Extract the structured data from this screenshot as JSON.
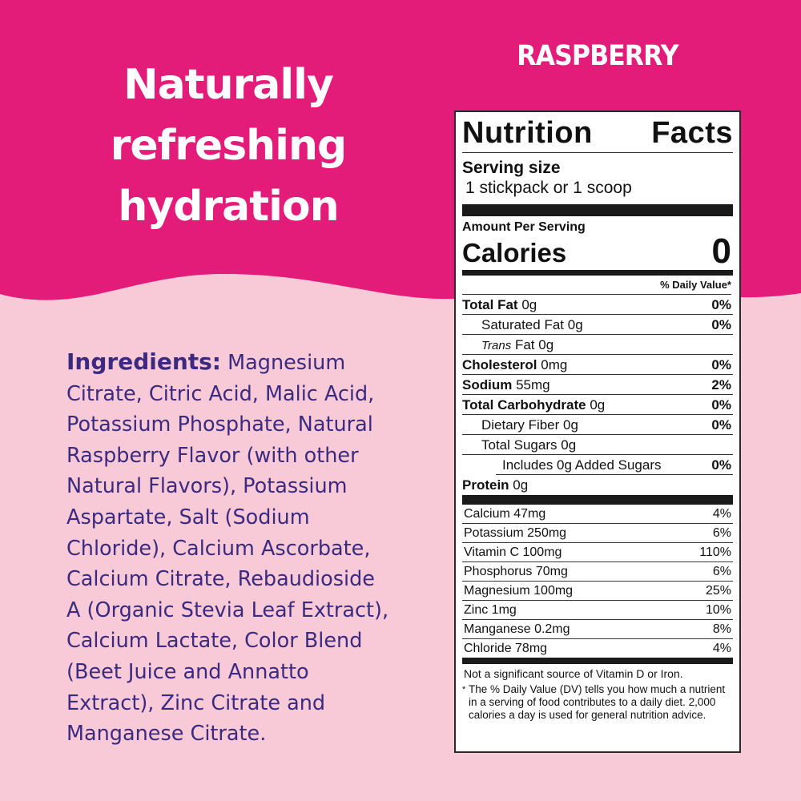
{
  "colors": {
    "top": "#e31b79",
    "bottom": "#f8cad7",
    "ingredients_text": "#3b2a7f"
  },
  "headline": [
    "Naturally",
    "refreshing",
    "hydration"
  ],
  "flavor": "RASPBERRY",
  "ingredients": {
    "label": "Ingredients:",
    "lines": [
      "Magnesium",
      "Citrate, Citric Acid, Malic Acid,",
      "Potassium Phosphate, Natural",
      "Raspberry Flavor (with other",
      "Natural Flavors), Potassium",
      "Aspartate, Salt (Sodium",
      "Chloride), Calcium Ascorbate,",
      "Calcium Citrate, Rebaudioside",
      "A (Organic Stevia Leaf Extract),",
      "Calcium Lactate, Color Blend",
      "(Beet Juice and Annatto",
      "Extract), Zinc Citrate and",
      "Manganese Citrate."
    ]
  },
  "nutrition": {
    "title_1": "Nutrition",
    "title_2": "Facts",
    "serving_label": "Serving size",
    "serving_value": "1 stickpack or 1 scoop",
    "amount_per_serving": "Amount Per Serving",
    "calories_label": "Calories",
    "calories": "0",
    "dv_header": "% Daily Value*",
    "rows": [
      {
        "name": "Total Fat",
        "amt": "0g",
        "dv": "0%",
        "bold": true,
        "indent": 0
      },
      {
        "name": "Saturated Fat",
        "amt": "0g",
        "dv": "0%",
        "bold": false,
        "indent": 1
      },
      {
        "name": "Trans",
        "name2": "Fat",
        "amt": "0g",
        "dv": "",
        "bold": false,
        "indent": 1,
        "italic": true
      },
      {
        "name": "Cholesterol",
        "amt": "0mg",
        "dv": "0%",
        "bold": true,
        "indent": 0
      },
      {
        "name": "Sodium",
        "amt": "55mg",
        "dv": "2%",
        "bold": true,
        "indent": 0
      },
      {
        "name": "Total Carbohydrate",
        "amt": "0g",
        "dv": "0%",
        "bold": true,
        "indent": 0
      },
      {
        "name": "Dietary Fiber",
        "amt": "0g",
        "dv": "0%",
        "bold": false,
        "indent": 1
      },
      {
        "name": "Total Sugars",
        "amt": "0g",
        "dv": "",
        "bold": false,
        "indent": 1
      },
      {
        "name": "Includes 0g Added Sugars",
        "amt": "",
        "dv": "0%",
        "bold": false,
        "indent": 2
      },
      {
        "name": "Protein",
        "amt": "0g",
        "dv": "",
        "bold": true,
        "indent": 0
      }
    ],
    "vitamins": [
      {
        "name": "Calcium 47mg",
        "dv": "4%"
      },
      {
        "name": "Potassium 250mg",
        "dv": "6%"
      },
      {
        "name": "Vitamin C 100mg",
        "dv": "110%"
      },
      {
        "name": "Phosphorus 70mg",
        "dv": "6%"
      },
      {
        "name": "Magnesium 100mg",
        "dv": "25%"
      },
      {
        "name": "Zinc 1mg",
        "dv": "10%"
      },
      {
        "name": "Manganese 0.2mg",
        "dv": "8%"
      },
      {
        "name": "Chloride 78mg",
        "dv": "4%"
      }
    ],
    "not_significant": "Not a significant source of Vitamin D or Iron.",
    "footnote_star": "*",
    "footnote": "The % Daily Value (DV) tells you how much a nutrient in a serving of food contributes to a daily diet. 2,000 calories a day is used for general nutrition advice."
  }
}
